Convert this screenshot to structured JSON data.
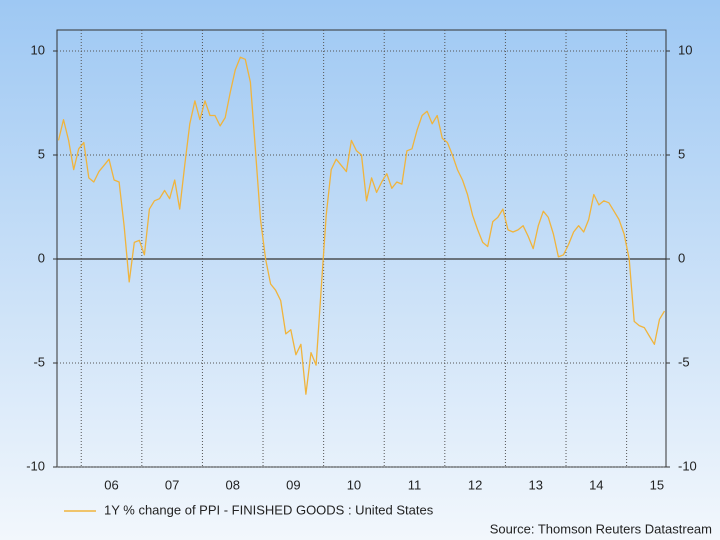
{
  "chart_data": {
    "type": "line",
    "x": [
      2005.625,
      2005.708,
      2005.792,
      2005.875,
      2005.958,
      2006.042,
      2006.125,
      2006.208,
      2006.292,
      2006.375,
      2006.458,
      2006.542,
      2006.625,
      2006.708,
      2006.792,
      2006.875,
      2006.958,
      2007.042,
      2007.125,
      2007.208,
      2007.292,
      2007.375,
      2007.458,
      2007.542,
      2007.625,
      2007.708,
      2007.792,
      2007.875,
      2007.958,
      2008.042,
      2008.125,
      2008.208,
      2008.292,
      2008.375,
      2008.458,
      2008.542,
      2008.625,
      2008.708,
      2008.792,
      2008.875,
      2008.958,
      2009.042,
      2009.125,
      2009.208,
      2009.292,
      2009.375,
      2009.458,
      2009.542,
      2009.625,
      2009.708,
      2009.792,
      2009.875,
      2009.958,
      2010.042,
      2010.125,
      2010.208,
      2010.292,
      2010.375,
      2010.458,
      2010.542,
      2010.625,
      2010.708,
      2010.792,
      2010.875,
      2010.958,
      2011.042,
      2011.125,
      2011.208,
      2011.292,
      2011.375,
      2011.458,
      2011.542,
      2011.625,
      2011.708,
      2011.792,
      2011.875,
      2011.958,
      2012.042,
      2012.125,
      2012.208,
      2012.292,
      2012.375,
      2012.458,
      2012.542,
      2012.625,
      2012.708,
      2012.792,
      2012.875,
      2012.958,
      2013.042,
      2013.125,
      2013.208,
      2013.292,
      2013.375,
      2013.458,
      2013.542,
      2013.625,
      2013.708,
      2013.792,
      2013.875,
      2013.958,
      2014.042,
      2014.125,
      2014.208,
      2014.292,
      2014.375,
      2014.458,
      2014.542,
      2014.625,
      2014.708,
      2014.792,
      2014.875,
      2014.958,
      2015.042,
      2015.125,
      2015.208,
      2015.292,
      2015.375,
      2015.458,
      2015.542,
      2015.625
    ],
    "series": [
      {
        "name": "1Y % change of PPI - FINISHED GOODS : United States",
        "color": "#f0b43c",
        "values": [
          5.7,
          6.7,
          5.7,
          4.3,
          5.3,
          5.6,
          3.9,
          3.7,
          4.2,
          4.5,
          4.8,
          3.8,
          3.7,
          1.6,
          -1.1,
          0.8,
          0.9,
          0.2,
          2.4,
          2.8,
          2.9,
          3.3,
          2.9,
          3.8,
          2.4,
          4.5,
          6.5,
          7.6,
          6.7,
          7.6,
          6.9,
          6.9,
          6.4,
          6.8,
          8.0,
          9.1,
          9.7,
          9.6,
          8.5,
          5.2,
          1.9,
          0,
          -1.2,
          -1.5,
          -2.0,
          -3.6,
          -3.4,
          -4.6,
          -4.1,
          -6.5,
          -4.5,
          -5.1,
          -1.5,
          2.1,
          4.3,
          4.8,
          4.5,
          4.2,
          5.7,
          5.2,
          5.0,
          2.8,
          3.9,
          3.2,
          3.7,
          4.1,
          3.4,
          3.7,
          3.6,
          5.2,
          5.3,
          6.2,
          6.9,
          7.1,
          6.5,
          6.9,
          5.8,
          5.6,
          5.0,
          4.3,
          3.8,
          3.1,
          2.1,
          1.4,
          0.8,
          0.6,
          1.8,
          2.0,
          2.4,
          1.4,
          1.3,
          1.4,
          1.6,
          1.1,
          0.5,
          1.6,
          2.3,
          2.0,
          1.2,
          0.1,
          0.2,
          0.7,
          1.3,
          1.6,
          1.3,
          1.9,
          3.1,
          2.6,
          2.8,
          2.7,
          2.3,
          1.9,
          1.2,
          0.0,
          -3.0,
          -3.2,
          -3.3,
          -3.7,
          -4.1,
          -2.9,
          -2.5
        ]
      }
    ],
    "xlim": [
      2005.6,
      2015.65
    ],
    "xticks": [
      {
        "value": 2006.5,
        "label": "06"
      },
      {
        "value": 2007.5,
        "label": "07"
      },
      {
        "value": 2008.5,
        "label": "08"
      },
      {
        "value": 2009.5,
        "label": "09"
      },
      {
        "value": 2010.5,
        "label": "10"
      },
      {
        "value": 2011.5,
        "label": "11"
      },
      {
        "value": 2012.5,
        "label": "12"
      },
      {
        "value": 2013.5,
        "label": "13"
      },
      {
        "value": 2014.5,
        "label": "14"
      },
      {
        "value": 2015.5,
        "label": "15"
      }
    ],
    "ylim": [
      -10,
      10
    ],
    "yticks": [
      -10,
      -5,
      0,
      5,
      10
    ],
    "y2lim": [
      -10,
      10
    ],
    "y2ticks": [
      -10,
      -5,
      0,
      5,
      10
    ],
    "grid": true,
    "source": "Source: Thomson Reuters Datastream"
  }
}
